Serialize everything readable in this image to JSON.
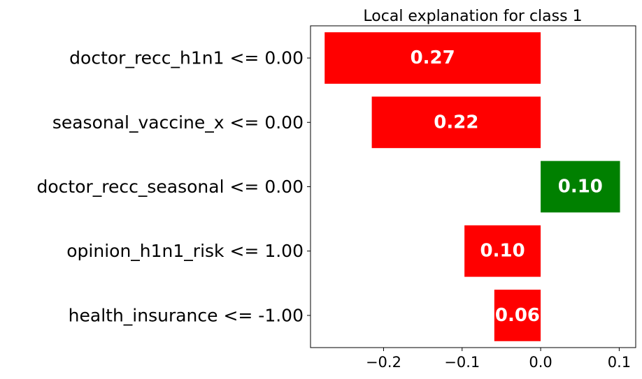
{
  "chart_data": {
    "type": "bar",
    "orientation": "horizontal",
    "title": "Local explanation for class 1",
    "xlabel": "",
    "ylabel": "",
    "categories": [
      "doctor_recc_h1n1 <= 0.00",
      "seasonal_vaccine_x <= 0.00",
      "doctor_recc_seasonal <= 0.00",
      "opinion_h1n1_risk <= 1.00",
      "health_insurance <= -1.00"
    ],
    "values": [
      -0.275,
      -0.215,
      0.101,
      -0.097,
      -0.059
    ],
    "data_labels": [
      "0.27",
      "0.22",
      "0.10",
      "0.10",
      "0.06"
    ],
    "colors": [
      "#ff0000",
      "#ff0000",
      "#008000",
      "#ff0000",
      "#ff0000"
    ],
    "xlim": [
      -0.293,
      0.121
    ],
    "xticks": [
      -0.2,
      -0.1,
      0.0,
      0.1
    ],
    "xtick_labels": [
      "−0.2",
      "−0.1",
      "0.0",
      "0.1"
    ],
    "positive_color": "#008000",
    "negative_color": "#ff0000",
    "grid": false,
    "legend": "none"
  }
}
